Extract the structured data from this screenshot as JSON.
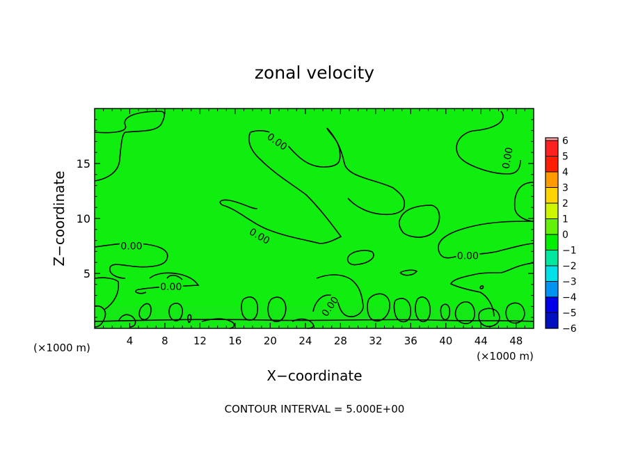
{
  "chart_data": {
    "type": "heatmap",
    "title": "zonal velocity",
    "xlabel": "X−coordinate",
    "ylabel": "Z−coordinate",
    "x_unit_left": "(×1000 m)",
    "x_unit_right": "(×1000 m)",
    "xlim": [
      0,
      50
    ],
    "ylim": [
      0,
      20
    ],
    "x_ticks": [
      4,
      8,
      12,
      16,
      20,
      24,
      28,
      32,
      36,
      40,
      44,
      48
    ],
    "y_ticks": [
      5,
      10,
      15
    ],
    "field_value": 0,
    "contour_level_label": "0.00",
    "contour_labels": [
      {
        "text": "0.00",
        "x": 20.8,
        "y": 17.0,
        "rot": 35
      },
      {
        "text": "0.00",
        "x": 47.0,
        "y": 15.5,
        "rot": -80
      },
      {
        "text": "0.00",
        "x": 18.8,
        "y": 8.4,
        "rot": 30
      },
      {
        "text": "0.00",
        "x": 4.2,
        "y": 7.5,
        "rot": 0
      },
      {
        "text": "0.00",
        "x": 42.5,
        "y": 6.6,
        "rot": 0
      },
      {
        "text": "0.00",
        "x": 8.7,
        "y": 3.8,
        "rot": 0
      },
      {
        "text": "0.00",
        "x": 26.8,
        "y": 2.0,
        "rot": -55
      }
    ],
    "colorbar": {
      "levels": [
        6,
        5,
        4,
        3,
        2,
        1,
        0,
        -1,
        -2,
        -3,
        -4,
        -5,
        -6
      ],
      "colors": [
        "#f7a0a0",
        "#ff2020",
        "#ff1e00",
        "#ff9a00",
        "#ffd400",
        "#cdf500",
        "#65f00a",
        "#00ee00",
        "#00e8a0",
        "#00e0e8",
        "#0094f0",
        "#0000e8",
        "#0010c0",
        "#7a00c8"
      ]
    },
    "footer": "CONTOUR INTERVAL = 5.000E+00",
    "colors": {
      "field": "#10ee10",
      "contour": "#000000"
    }
  }
}
